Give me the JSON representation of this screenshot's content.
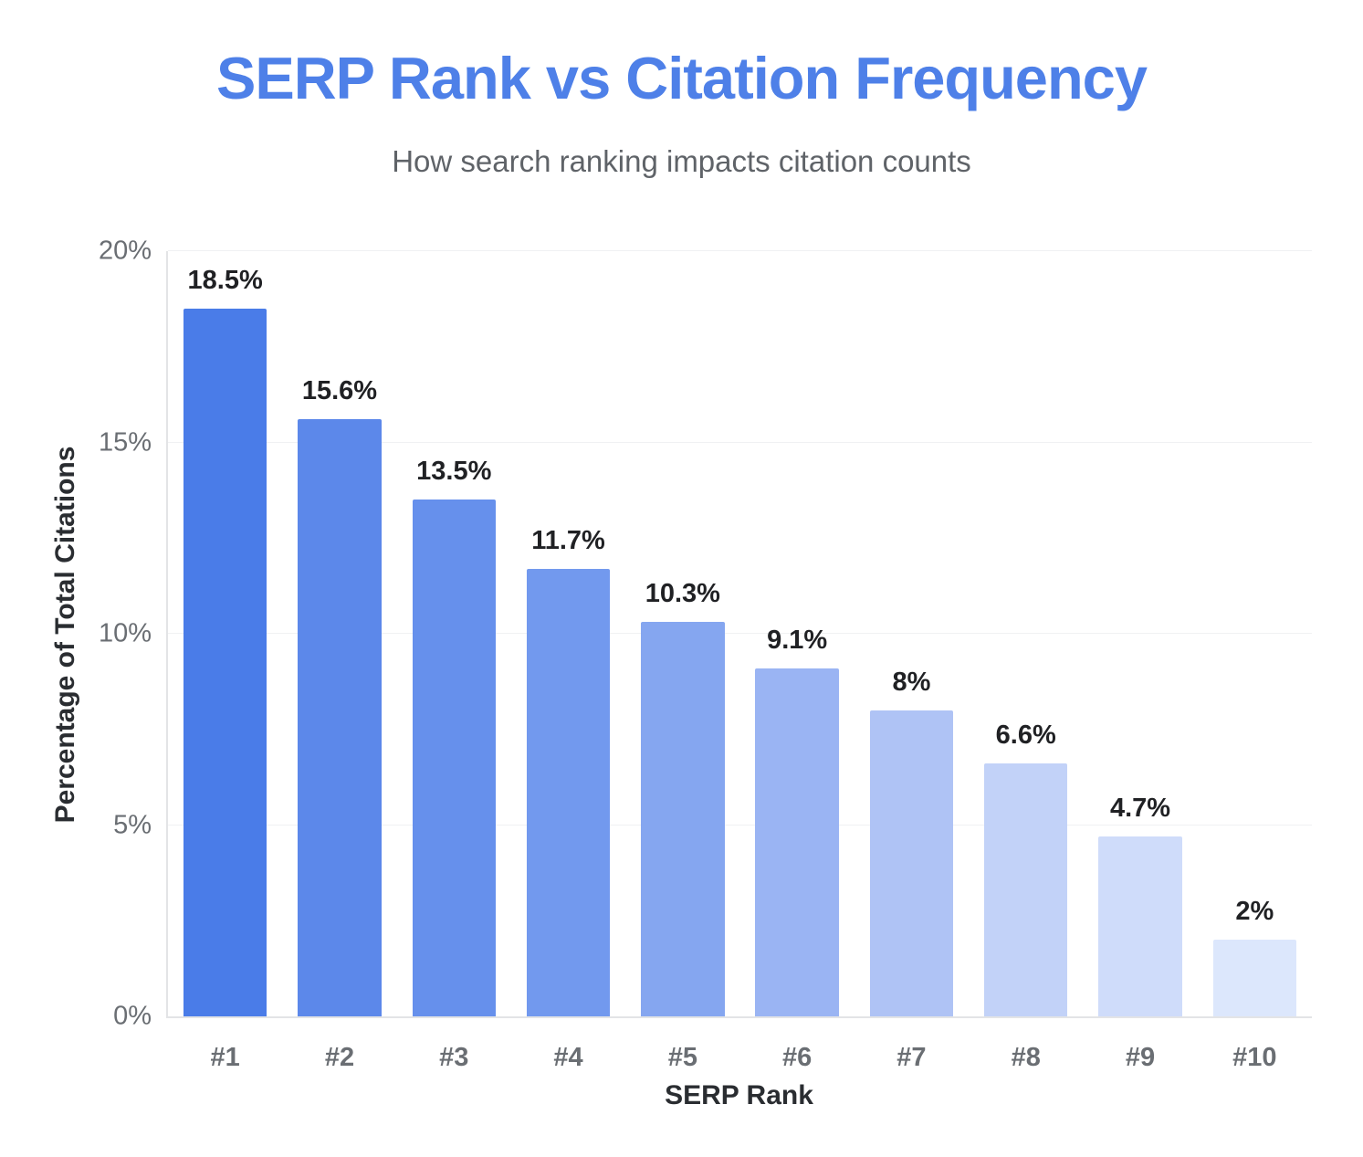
{
  "chart_data": {
    "type": "bar",
    "title": "SERP Rank vs Citation Frequency",
    "subtitle": "How search ranking impacts citation counts",
    "categories": [
      "#1",
      "#2",
      "#3",
      "#4",
      "#5",
      "#6",
      "#7",
      "#8",
      "#9",
      "#10"
    ],
    "values": [
      18.5,
      15.6,
      13.5,
      11.7,
      10.3,
      9.1,
      8,
      6.6,
      4.7,
      2
    ],
    "value_labels": [
      "18.5%",
      "15.6%",
      "13.5%",
      "11.7%",
      "10.3%",
      "9.1%",
      "8%",
      "6.6%",
      "4.7%",
      "2%"
    ],
    "xlabel": "SERP Rank",
    "ylabel": "Percentage of Total Citations",
    "ylim": [
      0,
      20
    ],
    "y_ticks": [
      {
        "value": 0,
        "label": "0%"
      },
      {
        "value": 5,
        "label": "5%"
      },
      {
        "value": 10,
        "label": "10%"
      },
      {
        "value": 15,
        "label": "15%"
      },
      {
        "value": 20,
        "label": "20%"
      }
    ],
    "grid": true,
    "legend": "none",
    "bar_colors": [
      "#4a7ce8",
      "#5c88ea",
      "#6690ec",
      "#7299ee",
      "#85a6f0",
      "#9ab4f3",
      "#afc3f5",
      "#c2d2f8",
      "#cfdcfa",
      "#dce7fc"
    ]
  },
  "colors": {
    "background": "#ffffff",
    "title": "#4e80e8",
    "subtitle": "#5f6368",
    "tick": "#6a6e73",
    "data_label": "#202124",
    "axis_title": "#2a2d31",
    "gridline": "#f0f1f3",
    "axis_line": "#e3e4e6"
  }
}
